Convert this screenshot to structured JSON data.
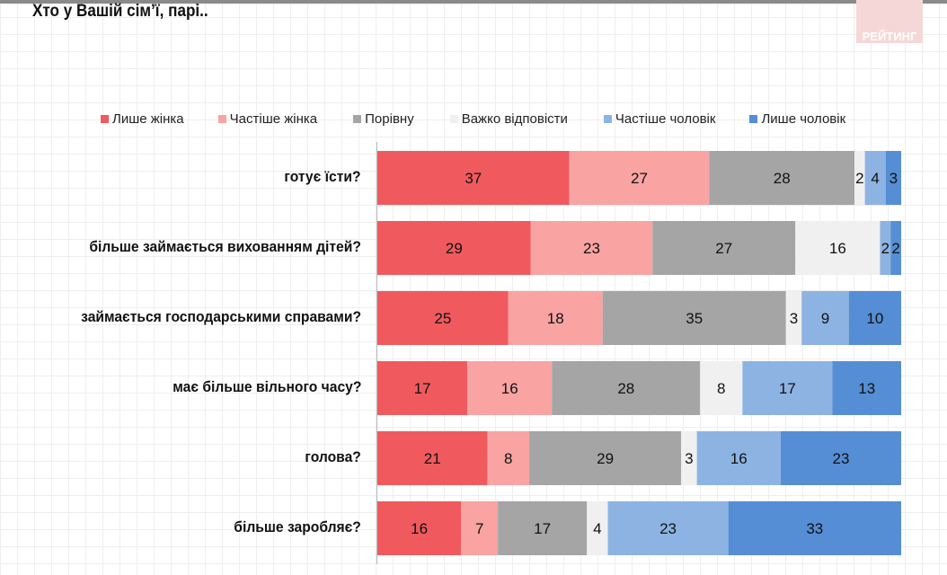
{
  "title": "Хто у Вашій сім’ї, парі..",
  "logo": "РЕЙТИНГ",
  "chart_data": {
    "type": "bar",
    "orientation": "horizontal",
    "stacked": "100%",
    "categories": [
      "готує їсти?",
      "більше займається вихованням дітей?",
      "займається господарськими справами?",
      "має більше вільного часу?",
      "голова?",
      "більше заробляє?"
    ],
    "series": [
      {
        "name": "Лише жінка",
        "color": "#f05a5e",
        "values": [
          37,
          29,
          25,
          17,
          21,
          16
        ]
      },
      {
        "name": "Частіше  жінка",
        "color": "#f9a3a3",
        "values": [
          27,
          23,
          18,
          16,
          8,
          7
        ]
      },
      {
        "name": "Порівну",
        "color": "#a5a5a5",
        "values": [
          28,
          27,
          35,
          28,
          29,
          17
        ]
      },
      {
        "name": "Важко відповісти",
        "color": "#f0f0f0",
        "values": [
          2,
          16,
          3,
          8,
          3,
          4
        ]
      },
      {
        "name": "Частіше  чоловік",
        "color": "#8db3e2",
        "values": [
          4,
          2,
          9,
          17,
          16,
          23
        ]
      },
      {
        "name": "Лише чоловік",
        "color": "#558ed5",
        "values": [
          3,
          2,
          10,
          13,
          23,
          33
        ]
      }
    ],
    "legend_position": "top",
    "grid": false
  }
}
